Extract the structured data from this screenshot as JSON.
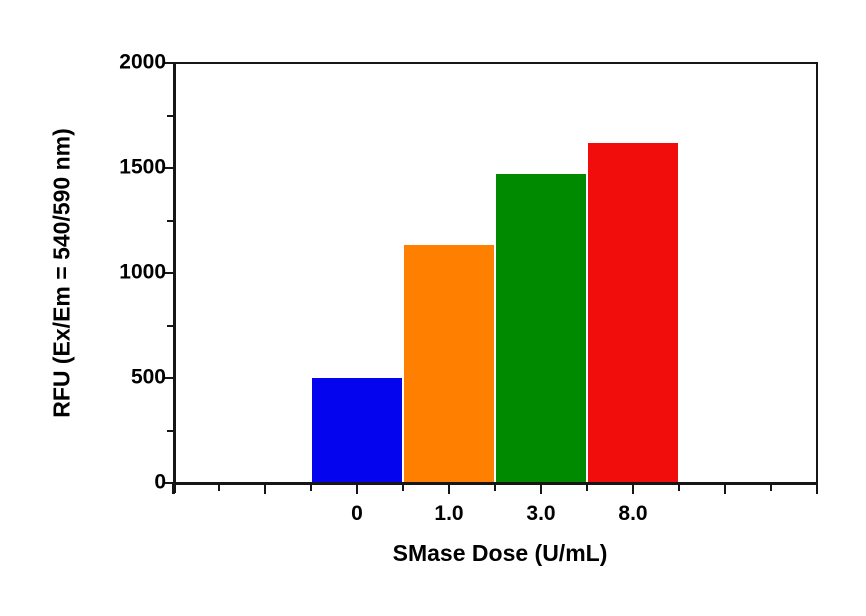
{
  "chart_data": {
    "type": "bar",
    "title": "",
    "xlabel": "SMase Dose (U/mL)",
    "ylabel": "RFU (Ex/Em = 540/590 nm)",
    "categories": [
      "0",
      "1.0",
      "3.0",
      "8.0"
    ],
    "values": [
      505,
      1140,
      1475,
      1625
    ],
    "series": [
      {
        "name": "RFU",
        "values": [
          505,
          1140,
          1475,
          1625
        ]
      }
    ],
    "bar_colors": [
      "#0404EE",
      "#FF8000",
      "#008A00",
      "#F20D0D"
    ],
    "ylim": [
      0,
      2000
    ],
    "y_major_ticks": [
      0,
      500,
      1000,
      1500,
      2000
    ],
    "y_minor_ticks": [
      250,
      750,
      1250,
      1750
    ],
    "grid": false,
    "legend": "none",
    "frame": "full-box",
    "tick_direction": "out",
    "axis_color": "#161616",
    "text_color": "#000000",
    "background": "#FFFFFF"
  }
}
